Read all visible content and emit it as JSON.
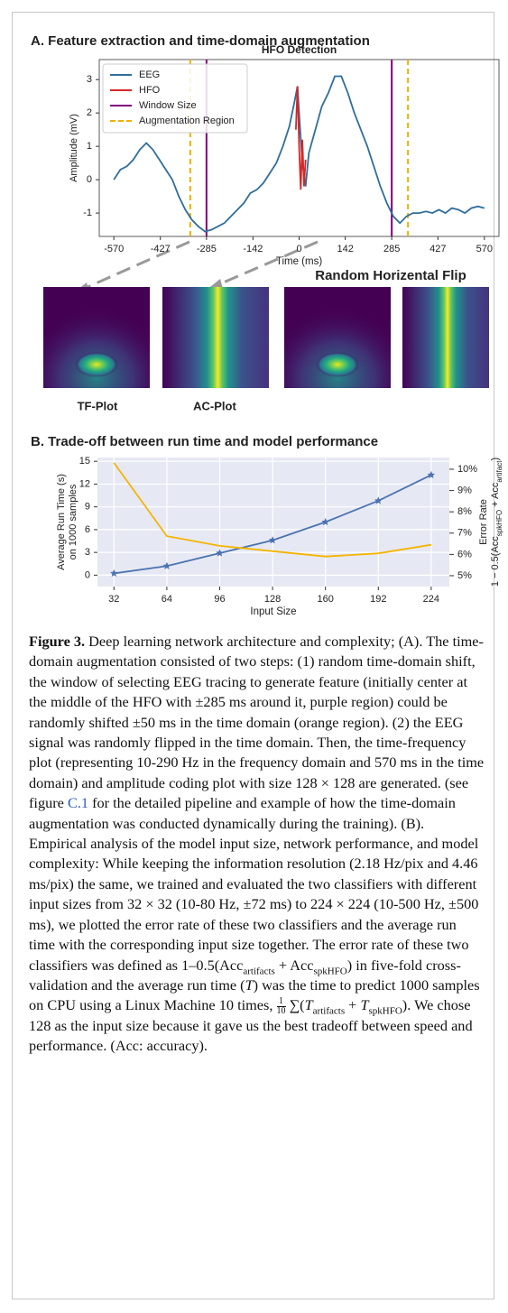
{
  "panel_a": {
    "title": "A. Feature extraction and time-domain augmentation",
    "flip_label": "Random Horizental Flip",
    "tf_label": "TF-Plot",
    "ac_label": "AC-Plot"
  },
  "panel_b": {
    "title": "B. Trade-off between run time and model performance"
  },
  "chart_data": [
    {
      "type": "line",
      "title": "HFO Detection",
      "xlabel": "Time (ms)",
      "ylabel": "Amplitude (mV)",
      "xlim": [
        -615,
        615
      ],
      "ylim": [
        -1.7,
        3.6
      ],
      "xticks": [
        -570,
        -427,
        -285,
        -142,
        0,
        142,
        285,
        427,
        570
      ],
      "yticks": [
        -1,
        0,
        1,
        2,
        3
      ],
      "legend": "upper left",
      "series": [
        {
          "name": "EEG",
          "color": "#2f6e9c",
          "x": [
            -570,
            -550,
            -530,
            -510,
            -490,
            -470,
            -450,
            -430,
            -410,
            -390,
            -370,
            -350,
            -330,
            -310,
            -290,
            -270,
            -250,
            -230,
            -210,
            -190,
            -170,
            -150,
            -130,
            -110,
            -90,
            -70,
            -50,
            -30,
            -15,
            -5,
            0,
            10,
            20,
            30,
            50,
            70,
            90,
            110,
            130,
            150,
            170,
            190,
            210,
            230,
            250,
            270,
            290,
            310,
            330,
            350,
            370,
            390,
            410,
            430,
            450,
            470,
            490,
            510,
            530,
            550,
            570
          ],
          "values": [
            0,
            0.3,
            0.4,
            0.6,
            0.9,
            1.1,
            0.9,
            0.6,
            0.3,
            0,
            -0.5,
            -0.9,
            -1.2,
            -1.4,
            -1.55,
            -1.5,
            -1.4,
            -1.3,
            -1.1,
            -0.9,
            -0.7,
            -0.4,
            -0.3,
            -0.1,
            0.2,
            0.5,
            1.0,
            1.6,
            2.3,
            2.8,
            2.0,
            0.5,
            -0.2,
            0.8,
            1.5,
            2.2,
            2.6,
            3.1,
            3.1,
            2.6,
            2.0,
            1.5,
            1.0,
            0.4,
            -0.2,
            -0.7,
            -1.1,
            -1.3,
            -1.1,
            -1.0,
            -1.0,
            -0.95,
            -1.0,
            -0.9,
            -1.0,
            -0.85,
            -0.9,
            -1.0,
            -0.85,
            -0.8,
            -0.85
          ]
        },
        {
          "name": "HFO",
          "color": "#d62728",
          "x": [
            -10,
            -5,
            0,
            5,
            10,
            15,
            20
          ],
          "values": [
            1.5,
            2.8,
            1.0,
            -0.3,
            1.2,
            -0.2,
            0.6
          ]
        }
      ],
      "vlines": [
        {
          "name": "Window Size",
          "color": "#800080",
          "x": [
            -285,
            285
          ]
        },
        {
          "name": "Augmentation Region",
          "color": "#f0b000",
          "dash": true,
          "x": [
            -335,
            335
          ]
        }
      ]
    },
    {
      "type": "line",
      "xlabel": "Input Size",
      "ylabel": [
        "Average Run Time (s)",
        "on 1000 samples"
      ],
      "y2label": [
        "Error Rate",
        [
          "1 − 0.5(Acc",
          "spkHFO",
          " + Acc",
          "artifact",
          ")"
        ]
      ],
      "x": [
        32,
        64,
        96,
        128,
        160,
        192,
        224
      ],
      "xlim": [
        22,
        235
      ],
      "xticks": [
        32,
        64,
        96,
        128,
        160,
        192,
        224
      ],
      "ylim": [
        -1.5,
        15.5
      ],
      "yticks": [
        0,
        3,
        6,
        9,
        12,
        15
      ],
      "y2lim": [
        4.49,
        10.55
      ],
      "y2ticks": [
        {
          "value": 5,
          "label": "5%"
        },
        {
          "value": 6,
          "label": "6%"
        },
        {
          "value": 7,
          "label": "7%"
        },
        {
          "value": 8,
          "label": "8%"
        },
        {
          "value": 9,
          "label": "9%"
        },
        {
          "value": 10,
          "label": "10%"
        }
      ],
      "grid": true,
      "background": "#e6e9f3",
      "ycolor": "#5b7fa6",
      "y2color": "#e8b43a",
      "series": [
        {
          "color": "#4c72b0",
          "marker": "star",
          "values": [
            0.24,
            1.2,
            2.9,
            4.6,
            7.0,
            9.8,
            13.2
          ]
        },
        {
          "color": "#f5b400",
          "axis": "y2",
          "values": [
            10.3,
            6.86,
            6.4,
            6.15,
            5.9,
            6.05,
            6.45
          ]
        }
      ]
    }
  ],
  "caption": {
    "segments": [
      {
        "b": "Figure 3."
      },
      {
        "t": " Deep learning network architecture and complexity; (A). The time-domain augmentation consisted of two steps: (1) random time-domain shift, the window of selecting EEG tracing to generate feature (initially center at the middle of the HFO with ±285 ms around it, purple region) could be randomly shifted ±50 ms in the time domain (orange region). (2) the EEG signal was randomly flipped in the time domain. Then, the time-frequency plot (representing 10-290 Hz in the frequency domain and 570 ms in the time domain) and amplitude coding plot with size 128 × 128 are generated. (see figure "
      },
      {
        "link": "C.1"
      },
      {
        "t": " for the detailed pipeline and example of how the time-domain augmentation was conducted dynamically during the training). (B). Empirical analysis of the model input size, network performance, and model complexity: While keeping the information resolution (2.18 Hz/pix and 4.46 ms/pix) the same, we trained and evaluated the two classifiers with different input sizes from 32 × 32 (10-80 Hz, ±72 ms) to 224 × 224 (10-500 Hz, ±500 ms), we plotted the error rate of these two classifiers and the average run time with the corresponding input size together. The error rate of these two classifiers was defined as 1–0.5(Acc"
      },
      {
        "sub": "artifacts"
      },
      {
        "t": " + Acc"
      },
      {
        "sub": "spkHFO"
      },
      {
        "t": ") in five-fold cross-validation and the average run time ("
      },
      {
        "i": "T"
      },
      {
        "t": ") was the time to predict 1000 samples on CPU using a Linux Machine 10 times, "
      },
      {
        "frac": [
          "1",
          "10"
        ]
      },
      {
        "t": " ∑("
      },
      {
        "i": "T"
      },
      {
        "sub": "artifacts"
      },
      {
        "t": " + "
      },
      {
        "i": "T"
      },
      {
        "sub": "spkHFO"
      },
      {
        "t": "). We chose 128 as the input size because it gave us the best tradeoff between speed and performance. (Acc: accuracy)."
      }
    ]
  }
}
